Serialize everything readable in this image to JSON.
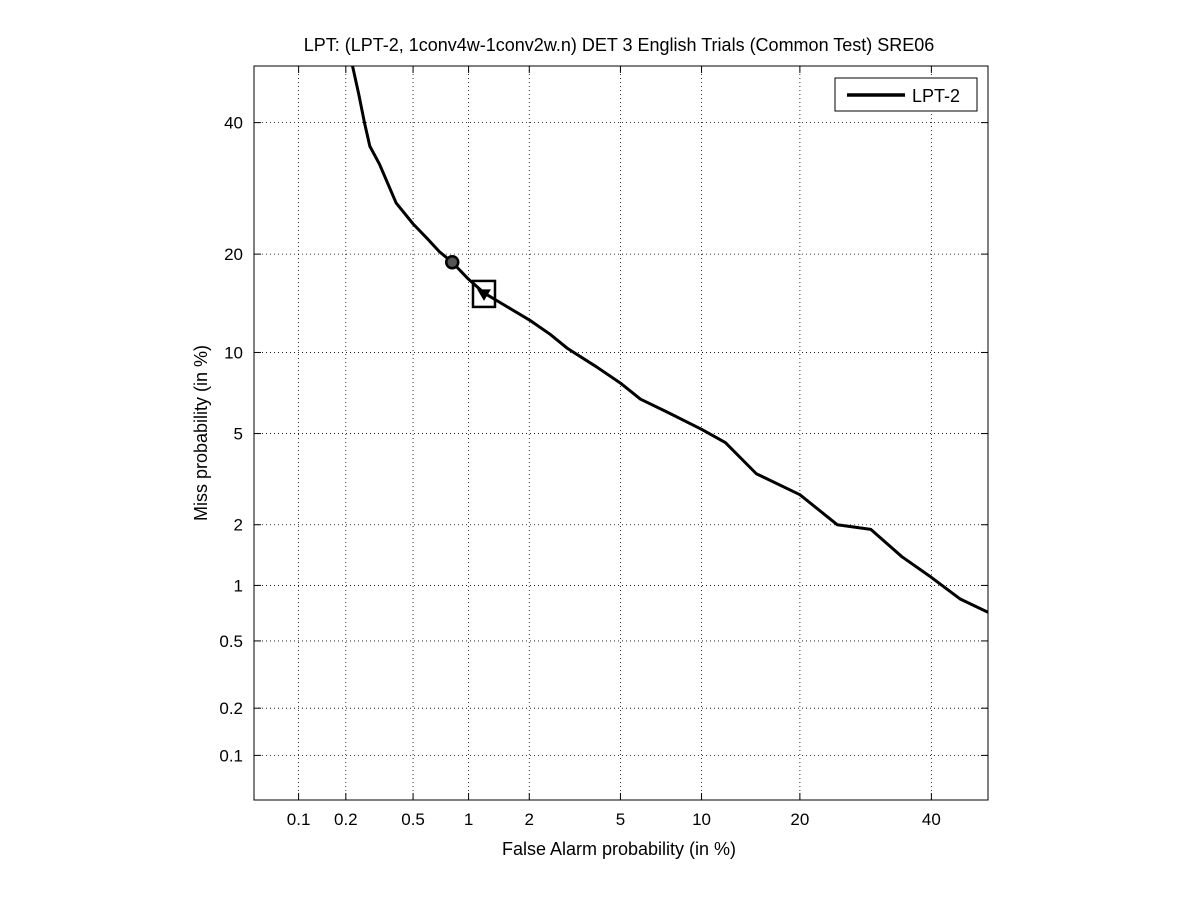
{
  "chart_data": {
    "type": "line",
    "title": "LPT: (LPT-2, 1conv4w-1conv2w.n) DET 3 English Trials (Common Test) SRE06",
    "xlabel": "False Alarm probability (in %)",
    "ylabel": "Miss probability (in %)",
    "x_scale": "normal-deviate (probit)",
    "y_scale": "normal-deviate (probit)",
    "xlim": [
      0.05,
      50
    ],
    "ylim": [
      0.05,
      50
    ],
    "x_ticks": [
      0.1,
      0.2,
      0.5,
      1,
      2,
      5,
      10,
      20,
      40
    ],
    "x_tick_labels": [
      "0.1",
      "0.2",
      "0.5",
      "1",
      "2",
      "5",
      "10",
      "20",
      "40"
    ],
    "y_ticks": [
      0.1,
      0.2,
      0.5,
      1,
      2,
      5,
      10,
      20,
      40
    ],
    "y_tick_labels": [
      "0.1",
      "0.2",
      "0.5",
      "1",
      "2",
      "5",
      "10",
      "20",
      "40"
    ],
    "grid": true,
    "legend": {
      "position": "top-right",
      "entries": [
        "LPT-2"
      ]
    },
    "series": [
      {
        "name": "LPT-2",
        "color": "#000000",
        "points": [
          [
            0.22,
            50
          ],
          [
            0.24,
            45
          ],
          [
            0.26,
            40
          ],
          [
            0.28,
            36
          ],
          [
            0.32,
            33
          ],
          [
            0.4,
            27
          ],
          [
            0.5,
            24
          ],
          [
            0.6,
            22
          ],
          [
            0.7,
            20.3
          ],
          [
            0.82,
            19
          ],
          [
            1.0,
            17
          ],
          [
            1.2,
            15.5
          ],
          [
            1.5,
            14.3
          ],
          [
            2.0,
            12.8
          ],
          [
            2.5,
            11.5
          ],
          [
            3.0,
            10.3
          ],
          [
            4.0,
            8.9
          ],
          [
            5.0,
            7.8
          ],
          [
            6.0,
            6.8
          ],
          [
            7.5,
            6.1
          ],
          [
            10.0,
            5.2
          ],
          [
            12.0,
            4.6
          ],
          [
            15.0,
            3.4
          ],
          [
            20.0,
            2.75
          ],
          [
            25.0,
            2.0
          ],
          [
            30.0,
            1.9
          ],
          [
            35.0,
            1.4
          ],
          [
            40.0,
            1.1
          ],
          [
            45.0,
            0.85
          ],
          [
            50.0,
            0.72
          ]
        ]
      }
    ],
    "markers": [
      {
        "shape": "circle",
        "x": 0.82,
        "y": 19
      },
      {
        "shape": "square",
        "x": 1.2,
        "y": 15.5
      },
      {
        "shape": "triangle-down",
        "x": 1.2,
        "y": 15.5
      }
    ]
  }
}
